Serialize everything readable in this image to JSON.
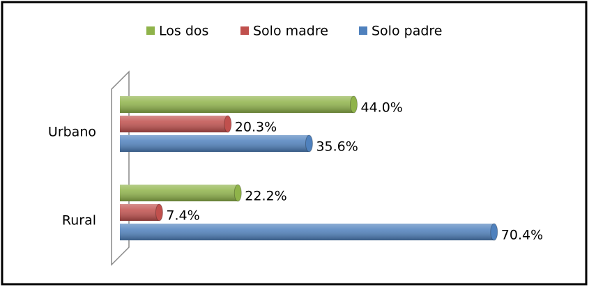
{
  "chart_data": {
    "type": "bar",
    "orientation": "horizontal",
    "categories": [
      "Urbano",
      "Rural"
    ],
    "series": [
      {
        "name": "Los dos",
        "color": "#8fb34a",
        "values": [
          44.0,
          22.2
        ],
        "value_labels": [
          "44.0%",
          "22.2%"
        ]
      },
      {
        "name": "Solo madre",
        "color": "#c0504d",
        "values": [
          20.3,
          7.4
        ],
        "value_labels": [
          "20.3%",
          "7.4%"
        ]
      },
      {
        "name": "Solo padre",
        "color": "#4f81bd",
        "values": [
          35.6,
          70.4
        ],
        "value_labels": [
          "35.6%",
          "70.4%"
        ]
      }
    ],
    "xlim": [
      0,
      80
    ]
  }
}
